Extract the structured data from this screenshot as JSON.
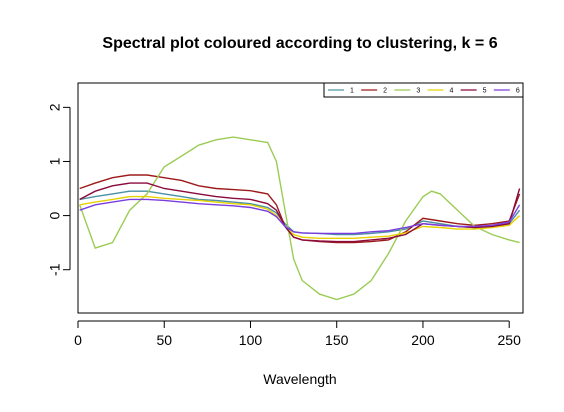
{
  "chart_data": {
    "type": "line",
    "title": "Spectral plot coloured according to clustering, k = 6",
    "xlabel": "Wavelength",
    "ylabel": "",
    "xlim": [
      0,
      258
    ],
    "ylim": [
      -1.8,
      2.45
    ],
    "x_ticks": [
      0,
      50,
      100,
      150,
      200,
      250
    ],
    "y_ticks": [
      -1,
      0,
      1,
      2
    ],
    "grid": false,
    "legend_position": "top-right",
    "legend_ncol": 6,
    "series": [
      {
        "name": "1",
        "color": "#4a90a4",
        "x": [
          1,
          10,
          20,
          30,
          40,
          50,
          60,
          70,
          80,
          90,
          100,
          110,
          115,
          120,
          125,
          130,
          140,
          150,
          160,
          170,
          180,
          190,
          200,
          210,
          220,
          230,
          240,
          250,
          256
        ],
        "y": [
          0.3,
          0.35,
          0.4,
          0.45,
          0.45,
          0.4,
          0.35,
          0.3,
          0.28,
          0.25,
          0.22,
          0.15,
          0.05,
          -0.15,
          -0.3,
          -0.32,
          -0.33,
          -0.35,
          -0.35,
          -0.33,
          -0.3,
          -0.25,
          -0.1,
          -0.15,
          -0.2,
          -0.22,
          -0.2,
          -0.15,
          0.1
        ]
      },
      {
        "name": "2",
        "color": "#9e1a1a",
        "x": [
          1,
          10,
          20,
          30,
          40,
          50,
          60,
          70,
          80,
          90,
          100,
          110,
          115,
          120,
          125,
          130,
          140,
          150,
          160,
          170,
          180,
          190,
          200,
          210,
          220,
          230,
          240,
          250,
          256
        ],
        "y": [
          0.5,
          0.6,
          0.7,
          0.75,
          0.75,
          0.7,
          0.65,
          0.55,
          0.5,
          0.48,
          0.46,
          0.4,
          0.2,
          -0.2,
          -0.4,
          -0.45,
          -0.48,
          -0.5,
          -0.5,
          -0.48,
          -0.45,
          -0.3,
          -0.05,
          -0.1,
          -0.15,
          -0.18,
          -0.15,
          -0.1,
          0.4
        ]
      },
      {
        "name": "3",
        "color": "#9ccc55",
        "x": [
          1,
          10,
          20,
          30,
          40,
          50,
          60,
          70,
          80,
          90,
          100,
          110,
          115,
          120,
          125,
          130,
          140,
          150,
          160,
          170,
          180,
          190,
          200,
          205,
          210,
          220,
          230,
          240,
          250,
          256
        ],
        "y": [
          0.2,
          -0.6,
          -0.5,
          0.1,
          0.4,
          0.9,
          1.1,
          1.3,
          1.4,
          1.45,
          1.4,
          1.35,
          1.0,
          0.1,
          -0.8,
          -1.2,
          -1.45,
          -1.55,
          -1.45,
          -1.2,
          -0.7,
          -0.1,
          0.35,
          0.45,
          0.4,
          0.1,
          -0.2,
          -0.35,
          -0.45,
          -0.5
        ]
      },
      {
        "name": "4",
        "color": "#e6d200",
        "x": [
          1,
          10,
          20,
          30,
          40,
          50,
          60,
          70,
          80,
          90,
          100,
          110,
          115,
          120,
          125,
          130,
          140,
          150,
          160,
          170,
          180,
          190,
          200,
          210,
          220,
          230,
          240,
          250,
          256
        ],
        "y": [
          0.2,
          0.25,
          0.3,
          0.35,
          0.35,
          0.32,
          0.3,
          0.28,
          0.25,
          0.22,
          0.2,
          0.12,
          0.0,
          -0.2,
          -0.35,
          -0.4,
          -0.42,
          -0.42,
          -0.42,
          -0.4,
          -0.38,
          -0.32,
          -0.2,
          -0.22,
          -0.25,
          -0.25,
          -0.22,
          -0.18,
          0.0
        ]
      },
      {
        "name": "5",
        "color": "#8b0a3c",
        "x": [
          1,
          10,
          20,
          30,
          40,
          50,
          60,
          70,
          80,
          90,
          100,
          110,
          115,
          120,
          125,
          130,
          140,
          150,
          160,
          170,
          180,
          190,
          200,
          210,
          220,
          230,
          240,
          250,
          256
        ],
        "y": [
          0.3,
          0.45,
          0.55,
          0.6,
          0.6,
          0.5,
          0.45,
          0.4,
          0.35,
          0.32,
          0.3,
          0.22,
          0.1,
          -0.2,
          -0.4,
          -0.45,
          -0.47,
          -0.48,
          -0.48,
          -0.45,
          -0.42,
          -0.35,
          -0.15,
          -0.18,
          -0.2,
          -0.22,
          -0.2,
          -0.15,
          0.5
        ]
      },
      {
        "name": "6",
        "color": "#7a3ee0",
        "x": [
          1,
          10,
          20,
          30,
          40,
          50,
          60,
          70,
          80,
          90,
          100,
          110,
          115,
          120,
          125,
          130,
          140,
          150,
          160,
          170,
          180,
          190,
          200,
          210,
          220,
          230,
          240,
          250,
          256
        ],
        "y": [
          0.1,
          0.2,
          0.25,
          0.3,
          0.3,
          0.28,
          0.25,
          0.22,
          0.2,
          0.18,
          0.15,
          0.08,
          -0.02,
          -0.2,
          -0.3,
          -0.32,
          -0.33,
          -0.33,
          -0.33,
          -0.3,
          -0.28,
          -0.22,
          -0.15,
          -0.18,
          -0.2,
          -0.2,
          -0.18,
          -0.12,
          0.2
        ]
      }
    ]
  }
}
